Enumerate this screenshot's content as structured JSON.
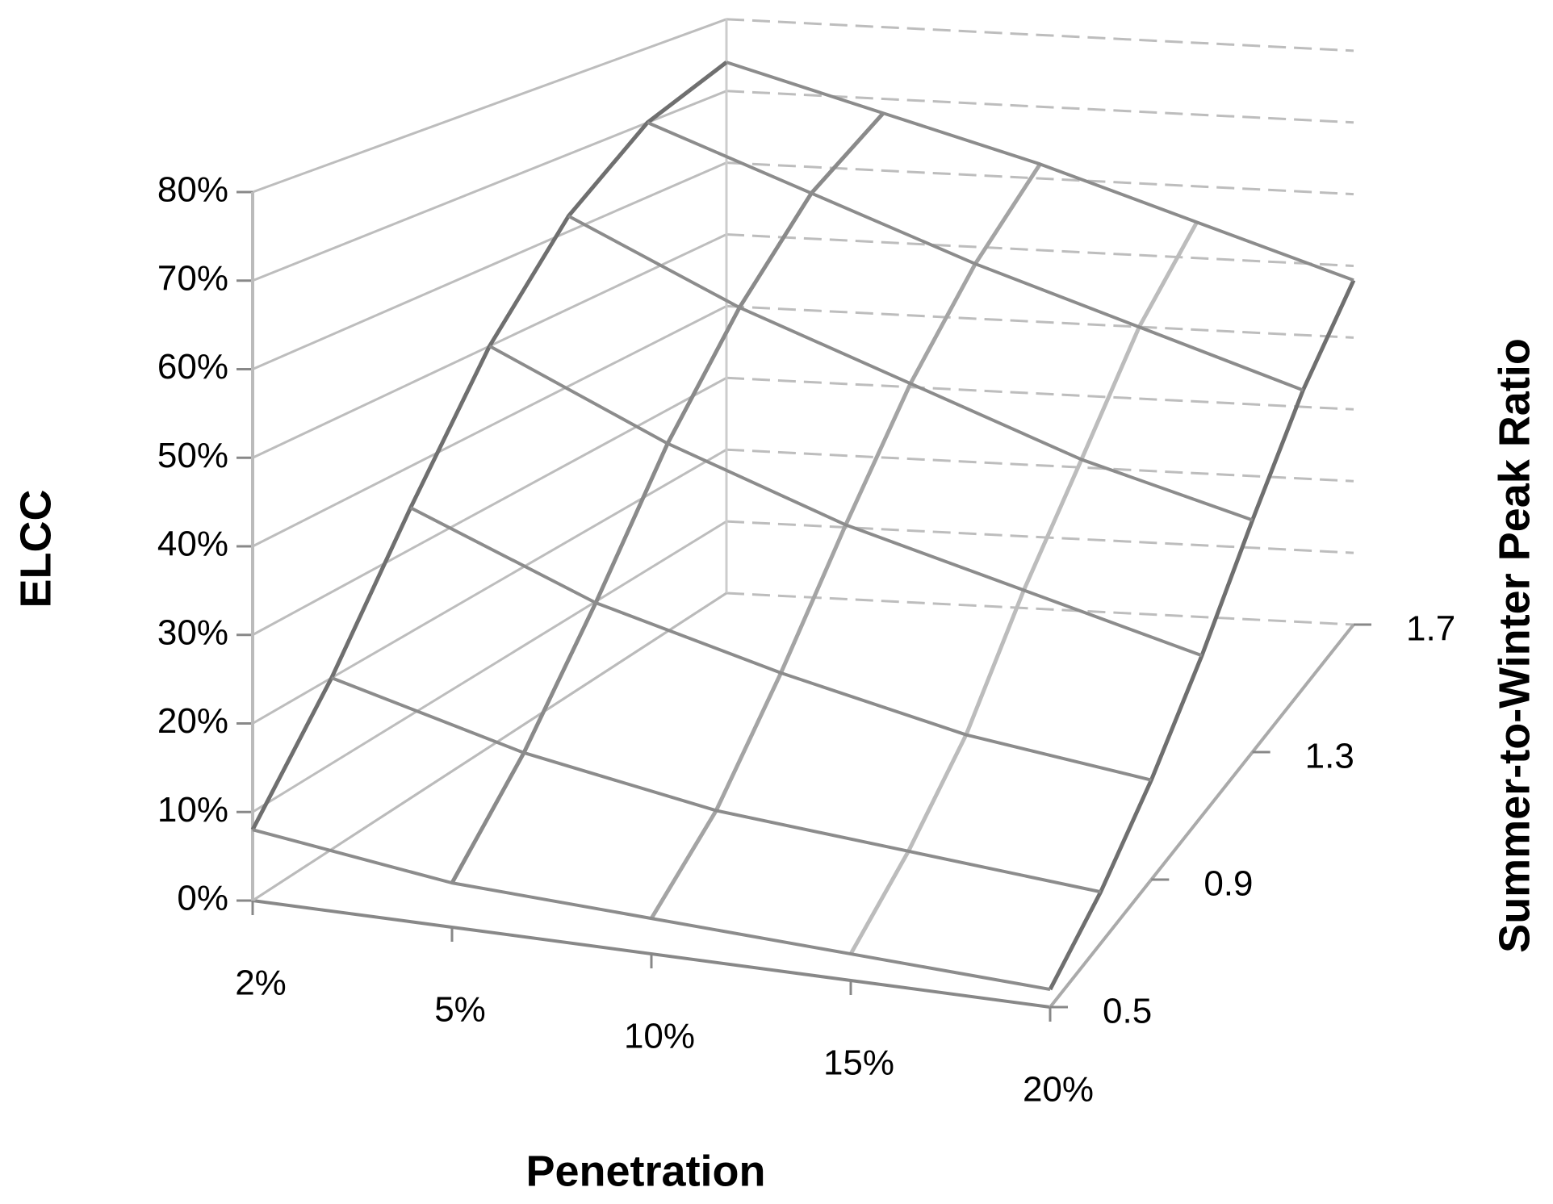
{
  "chart_data": {
    "type": "surface3d",
    "zlabel": "ELCC",
    "xlabel": "Penetration",
    "ylabel": "Summer-to-Winter Peak Ratio",
    "categories": [
      "2%",
      "5%",
      "10%",
      "15%",
      "20%"
    ],
    "depth_categories": [
      "0.5",
      null,
      "0.9",
      null,
      "1.3",
      null,
      "1.7"
    ],
    "zlim": [
      0,
      80
    ],
    "zticks": [
      {
        "value": 0,
        "label": "0%"
      },
      {
        "value": 10,
        "label": "10%"
      },
      {
        "value": 20,
        "label": "20%"
      },
      {
        "value": 30,
        "label": "30%"
      },
      {
        "value": 40,
        "label": "40%"
      },
      {
        "value": 50,
        "label": "50%"
      },
      {
        "value": 60,
        "label": "60%"
      },
      {
        "value": 70,
        "label": "70%"
      },
      {
        "value": 80,
        "label": "80%"
      }
    ],
    "grid": true,
    "color": "#8c8c8c",
    "series": [
      {
        "values": [
          8,
          5,
          4,
          3,
          2
        ]
      },
      {
        "values": [
          20,
          14,
          10,
          8,
          6
        ]
      },
      {
        "values": [
          35,
          26,
          20,
          15,
          12
        ]
      },
      {
        "values": [
          50,
          40,
          32,
          26,
          20
        ]
      },
      {
        "values": [
          62,
          52,
          44,
          36,
          30
        ]
      },
      {
        "values": [
          70,
          62,
          54,
          47,
          40
        ]
      },
      {
        "values": [
          74,
          68,
          62,
          55,
          48
        ]
      }
    ]
  }
}
